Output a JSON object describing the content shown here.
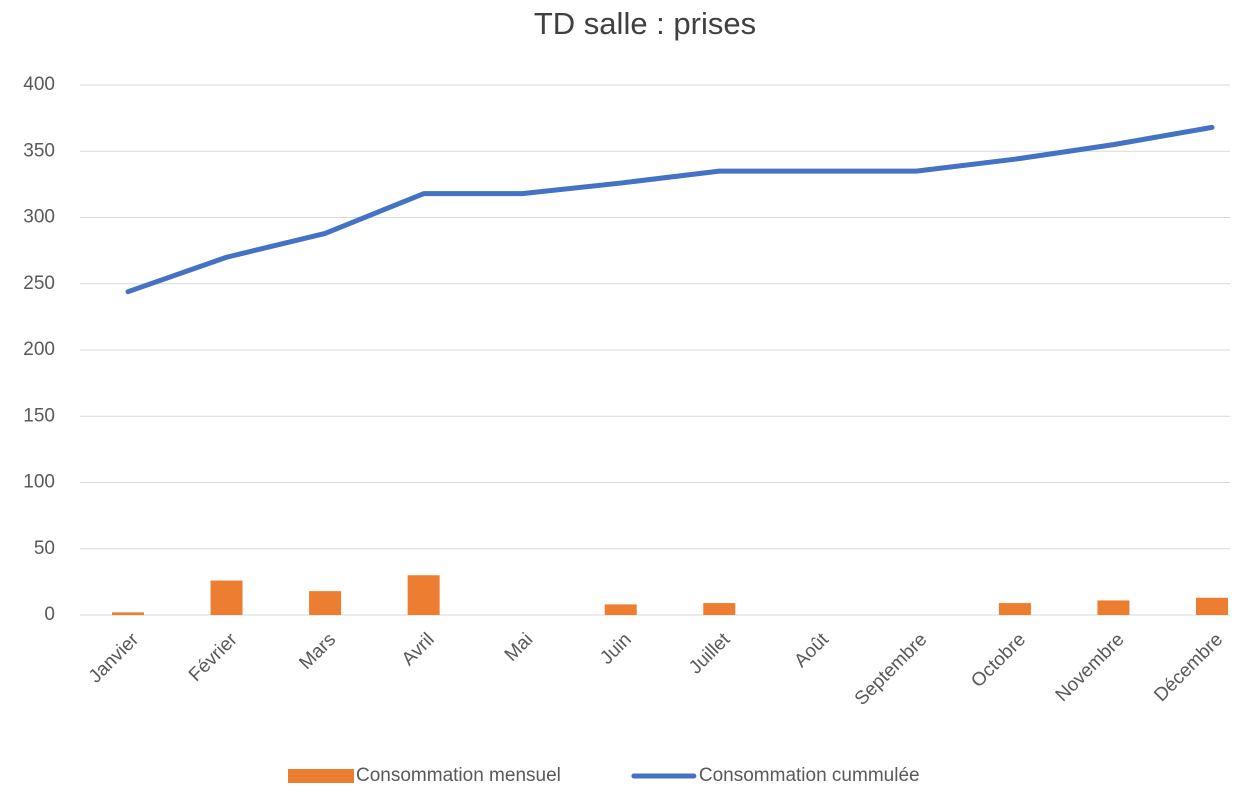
{
  "chart_data": {
    "type": "combo",
    "title": "TD salle : prises",
    "categories": [
      "Janvier",
      "Février",
      "Mars",
      "Avril",
      "Mai",
      "Juin",
      "Juillet",
      "Août",
      "Septembre",
      "Octobre",
      "Novembre",
      "Décembre"
    ],
    "series": [
      {
        "name": "Consommation mensuel",
        "type": "bar",
        "color": "#ed7d31",
        "values": [
          2,
          26,
          18,
          30,
          0,
          8,
          9,
          0,
          0,
          9,
          11,
          13
        ]
      },
      {
        "name": "Consommation cummulée",
        "type": "line",
        "color": "#4472c4",
        "values": [
          244,
          270,
          288,
          318,
          318,
          326,
          335,
          335,
          335,
          344,
          355,
          368
        ]
      }
    ],
    "ylim": [
      0,
      400
    ],
    "yticks": [
      0,
      50,
      100,
      150,
      200,
      250,
      300,
      350,
      400
    ],
    "grid": true,
    "legend": "bottom"
  }
}
